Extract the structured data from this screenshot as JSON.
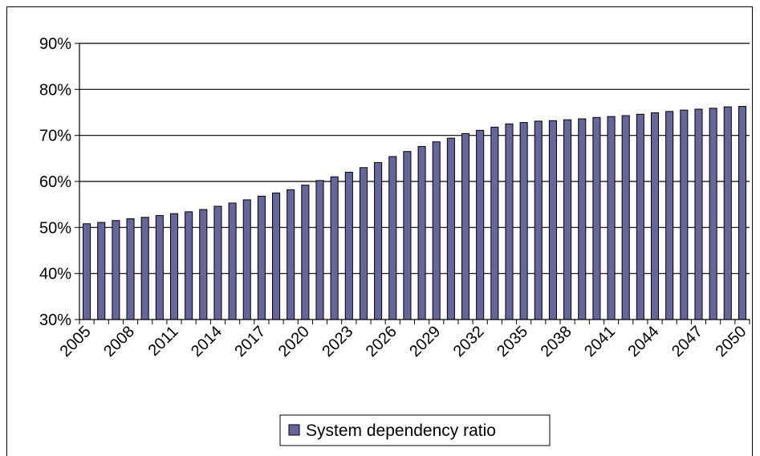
{
  "chart_data": {
    "type": "bar",
    "title": "",
    "xlabel": "",
    "ylabel": "",
    "ylim": [
      30,
      90
    ],
    "y_tick_step": 10,
    "y_tick_suffix": "%",
    "x_label_every": 3,
    "grid": true,
    "legend_position": "bottom",
    "bar_color": "#66669a",
    "x": [
      2005,
      2006,
      2007,
      2008,
      2009,
      2010,
      2011,
      2012,
      2013,
      2014,
      2015,
      2016,
      2017,
      2018,
      2019,
      2020,
      2021,
      2022,
      2023,
      2024,
      2025,
      2026,
      2027,
      2028,
      2029,
      2030,
      2031,
      2032,
      2033,
      2034,
      2035,
      2036,
      2037,
      2038,
      2039,
      2040,
      2041,
      2042,
      2043,
      2044,
      2045,
      2046,
      2047,
      2048,
      2049,
      2050
    ],
    "series": [
      {
        "name": "System dependency ratio",
        "values": [
          50.8,
          51.1,
          51.5,
          51.9,
          52.2,
          52.6,
          53.0,
          53.4,
          53.9,
          54.6,
          55.3,
          56.0,
          56.8,
          57.5,
          58.2,
          59.2,
          60.2,
          61.0,
          62.0,
          63.0,
          64.1,
          65.4,
          66.5,
          67.6,
          68.6,
          69.4,
          70.4,
          71.1,
          71.8,
          72.5,
          72.8,
          73.1,
          73.2,
          73.4,
          73.6,
          73.9,
          74.1,
          74.3,
          74.6,
          74.9,
          75.2,
          75.5,
          75.7,
          75.9,
          76.2,
          76.3
        ]
      }
    ]
  }
}
